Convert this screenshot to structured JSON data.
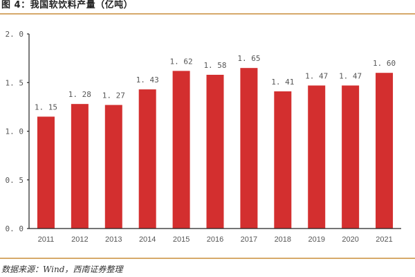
{
  "header": {
    "title": "图 4：我国软饮料产量（亿吨）"
  },
  "footer": {
    "source": "数据来源：Wind，西南证券整理"
  },
  "colors": {
    "bar": "#d32f2f",
    "rule": "#d6a96a",
    "axis": "#222222",
    "text": "#555555"
  },
  "chart_data": {
    "type": "bar",
    "title": "图 4：我国软饮料产量（亿吨）",
    "xlabel": "",
    "ylabel": "亿吨",
    "categories": [
      "2011",
      "2012",
      "2013",
      "2014",
      "2015",
      "2016",
      "2017",
      "2018",
      "2019",
      "2020",
      "2021"
    ],
    "values": [
      1.15,
      1.28,
      1.27,
      1.43,
      1.62,
      1.58,
      1.65,
      1.41,
      1.47,
      1.47,
      1.6
    ],
    "value_labels": [
      "1.15",
      "1.28",
      "1.27",
      "1.43",
      "1.62",
      "1.58",
      "1.65",
      "1.41",
      "1.47",
      "1.47",
      "1.60"
    ],
    "ylim": [
      0,
      2.0
    ],
    "yticks": [
      "0.0",
      "0.5",
      "1.0",
      "1.5",
      "2.0"
    ],
    "grid": false,
    "legend": null
  }
}
